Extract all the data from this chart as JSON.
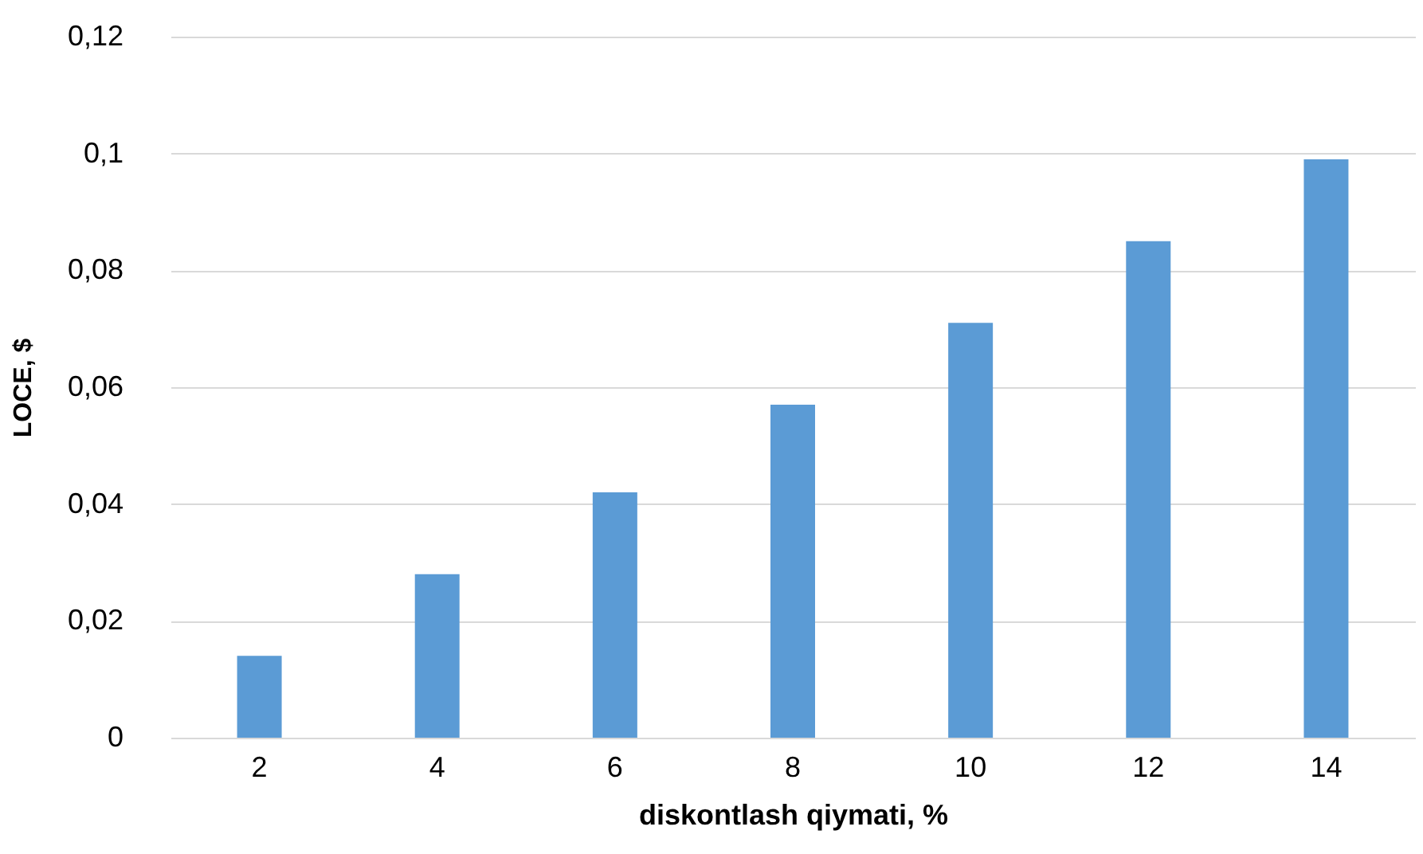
{
  "chart_data": {
    "type": "bar",
    "xlabel": "diskontlash qiymati, %",
    "ylabel": "LOCE, $",
    "categories": [
      "2",
      "4",
      "6",
      "8",
      "10",
      "12",
      "14"
    ],
    "values": [
      0.014,
      0.028,
      0.042,
      0.057,
      0.071,
      0.085,
      0.099
    ],
    "color": "#5b9bd5",
    "ylim": [
      0,
      0.12
    ],
    "yticks": [
      0,
      {
        "value": 0.02,
        "label": "0,02"
      },
      {
        "value": 0.04,
        "label": "0,04"
      },
      {
        "value": 0.06,
        "label": "0,06"
      },
      {
        "value": 0.08,
        "label": "0,08"
      },
      {
        "value": 0.1,
        "label": "0,1"
      },
      {
        "value": 0.12,
        "label": "0,12"
      }
    ],
    "grid": "y"
  }
}
